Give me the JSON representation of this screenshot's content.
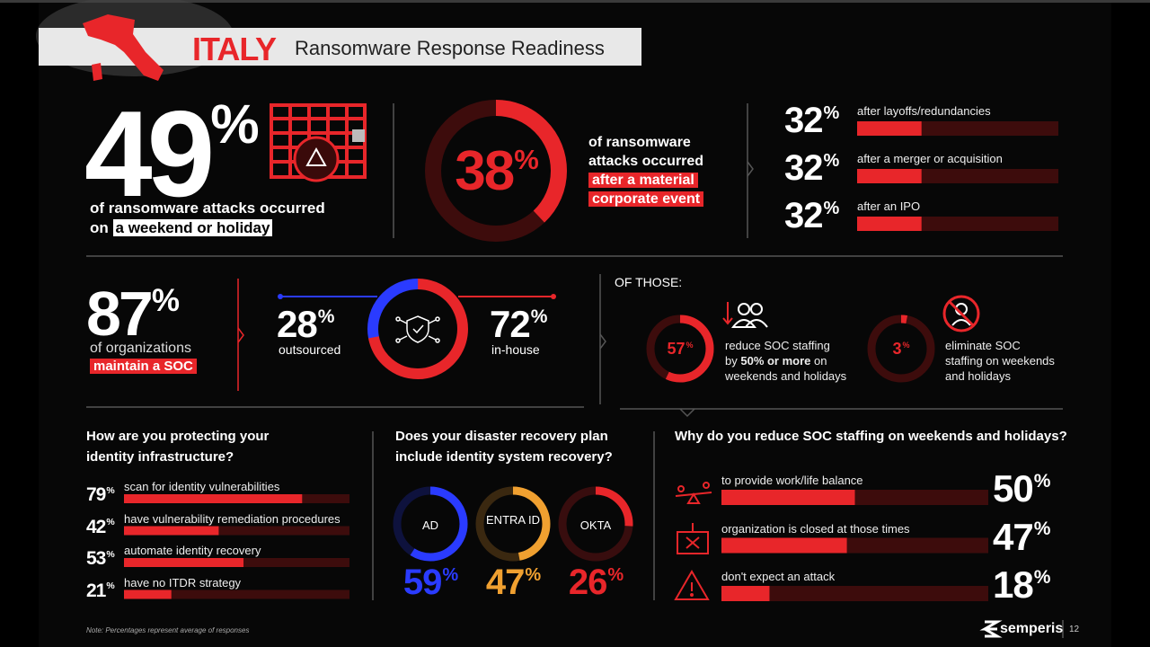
{
  "header": {
    "country": "ITALY",
    "title": "Ransomware Response Readiness"
  },
  "percent": "%",
  "weekend": {
    "value": 49,
    "line1": "of ransomware attacks occurred",
    "line2": "on",
    "highlight": "a weekend or holiday"
  },
  "corporate_event": {
    "value": 38,
    "line1": "of ransomware",
    "line2": "attacks occurred",
    "highlight1": "after a material",
    "highlight2": "corporate event",
    "items": [
      {
        "value": 32,
        "label": "after layoffs/redundancies"
      },
      {
        "value": 32,
        "label": "after a merger or acquisition"
      },
      {
        "value": 32,
        "label": "after an IPO"
      }
    ]
  },
  "soc": {
    "value": 87,
    "line1": "of organizations",
    "highlight": "maintain a SOC",
    "outsourced": {
      "value": 28,
      "label": "outsourced"
    },
    "in_house": {
      "value": 72,
      "label": "in-house"
    }
  },
  "of_those": {
    "title": "OF THOSE:",
    "items": [
      {
        "value": 57,
        "lines": [
          "reduce SOC staffing",
          "by",
          "50% or more",
          "on",
          "weekends and holidays"
        ]
      },
      {
        "value": 3,
        "lines": [
          "eliminate SOC",
          "staffing on weekends",
          "and holidays"
        ]
      }
    ]
  },
  "identity_protection": {
    "title": "How are you protecting your identity infrastructure?",
    "items": [
      {
        "value": 79,
        "label": "scan for identity vulnerabilities"
      },
      {
        "value": 42,
        "label": "have vulnerability remediation procedures"
      },
      {
        "value": 53,
        "label": "automate identity recovery"
      },
      {
        "value": 21,
        "label": "have no ITDR strategy"
      }
    ]
  },
  "disaster_recovery": {
    "title": "Does your disaster recovery plan include identity system recovery?",
    "items": [
      {
        "label": "AD",
        "value": 59,
        "color": "#2a3bff"
      },
      {
        "label": "ENTRA ID",
        "value": 47,
        "color": "#f0a030"
      },
      {
        "label": "OKTA",
        "value": 26,
        "color": "#e8262a"
      }
    ]
  },
  "soc_reasons": {
    "title": "Why do you reduce SOC staffing on weekends and holidays?",
    "items": [
      {
        "value": 50,
        "label": "to provide work/life balance"
      },
      {
        "value": 47,
        "label": "organization is closed at those times"
      },
      {
        "value": 18,
        "label": "don't expect an attack"
      }
    ]
  },
  "footer": {
    "note": "Note: Percentages represent average of responses",
    "brand": "semperis",
    "page": 12
  }
}
